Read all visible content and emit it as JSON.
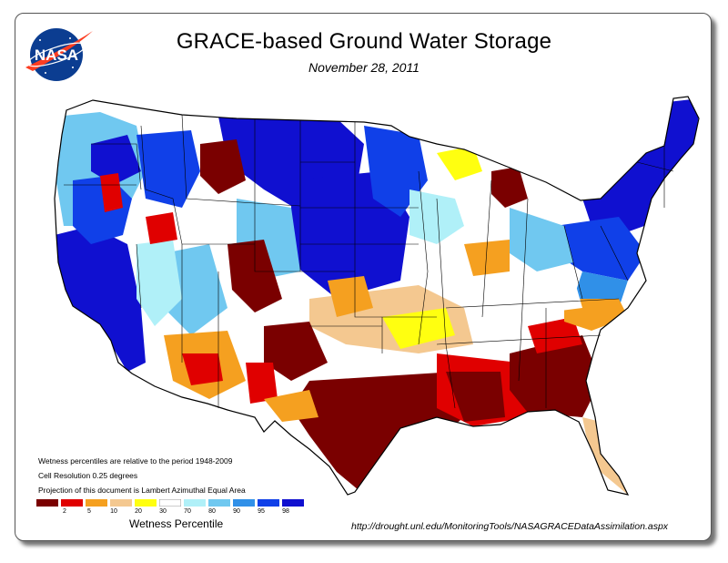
{
  "title": "GRACE-based Ground Water Storage",
  "date": "November 28, 2011",
  "logo_text": "NASA",
  "notes": [
    "Wetness percentiles are relative to the period 1948-2009",
    "Cell Resolution 0.25 degrees",
    "Projection of this document is Lambert Azimuthal Equal Area"
  ],
  "legend": {
    "title": "Wetness Percentile",
    "colors": [
      "#7a0000",
      "#e00000",
      "#f5a020",
      "#f4c890",
      "#ffff10",
      "#ffffff",
      "#b0f0f8",
      "#70c8f0",
      "#3090e8",
      "#1040e8",
      "#1010d0"
    ],
    "ticks": [
      "2",
      "5",
      "10",
      "20",
      "30",
      "70",
      "80",
      "90",
      "95",
      "98"
    ]
  },
  "source_url": "http://drought.unl.edu/MonitoringTools/NASAGRACEDataAssimilation.aspx",
  "colors": {
    "extreme_dry": "#7a0000",
    "very_dry": "#e00000",
    "dry": "#f5a020",
    "moderately_dry": "#f4c890",
    "slightly_dry": "#ffff10",
    "normal": "#ffffff",
    "wet": "#b0f0f8",
    "very_wet": "#1010d0"
  }
}
